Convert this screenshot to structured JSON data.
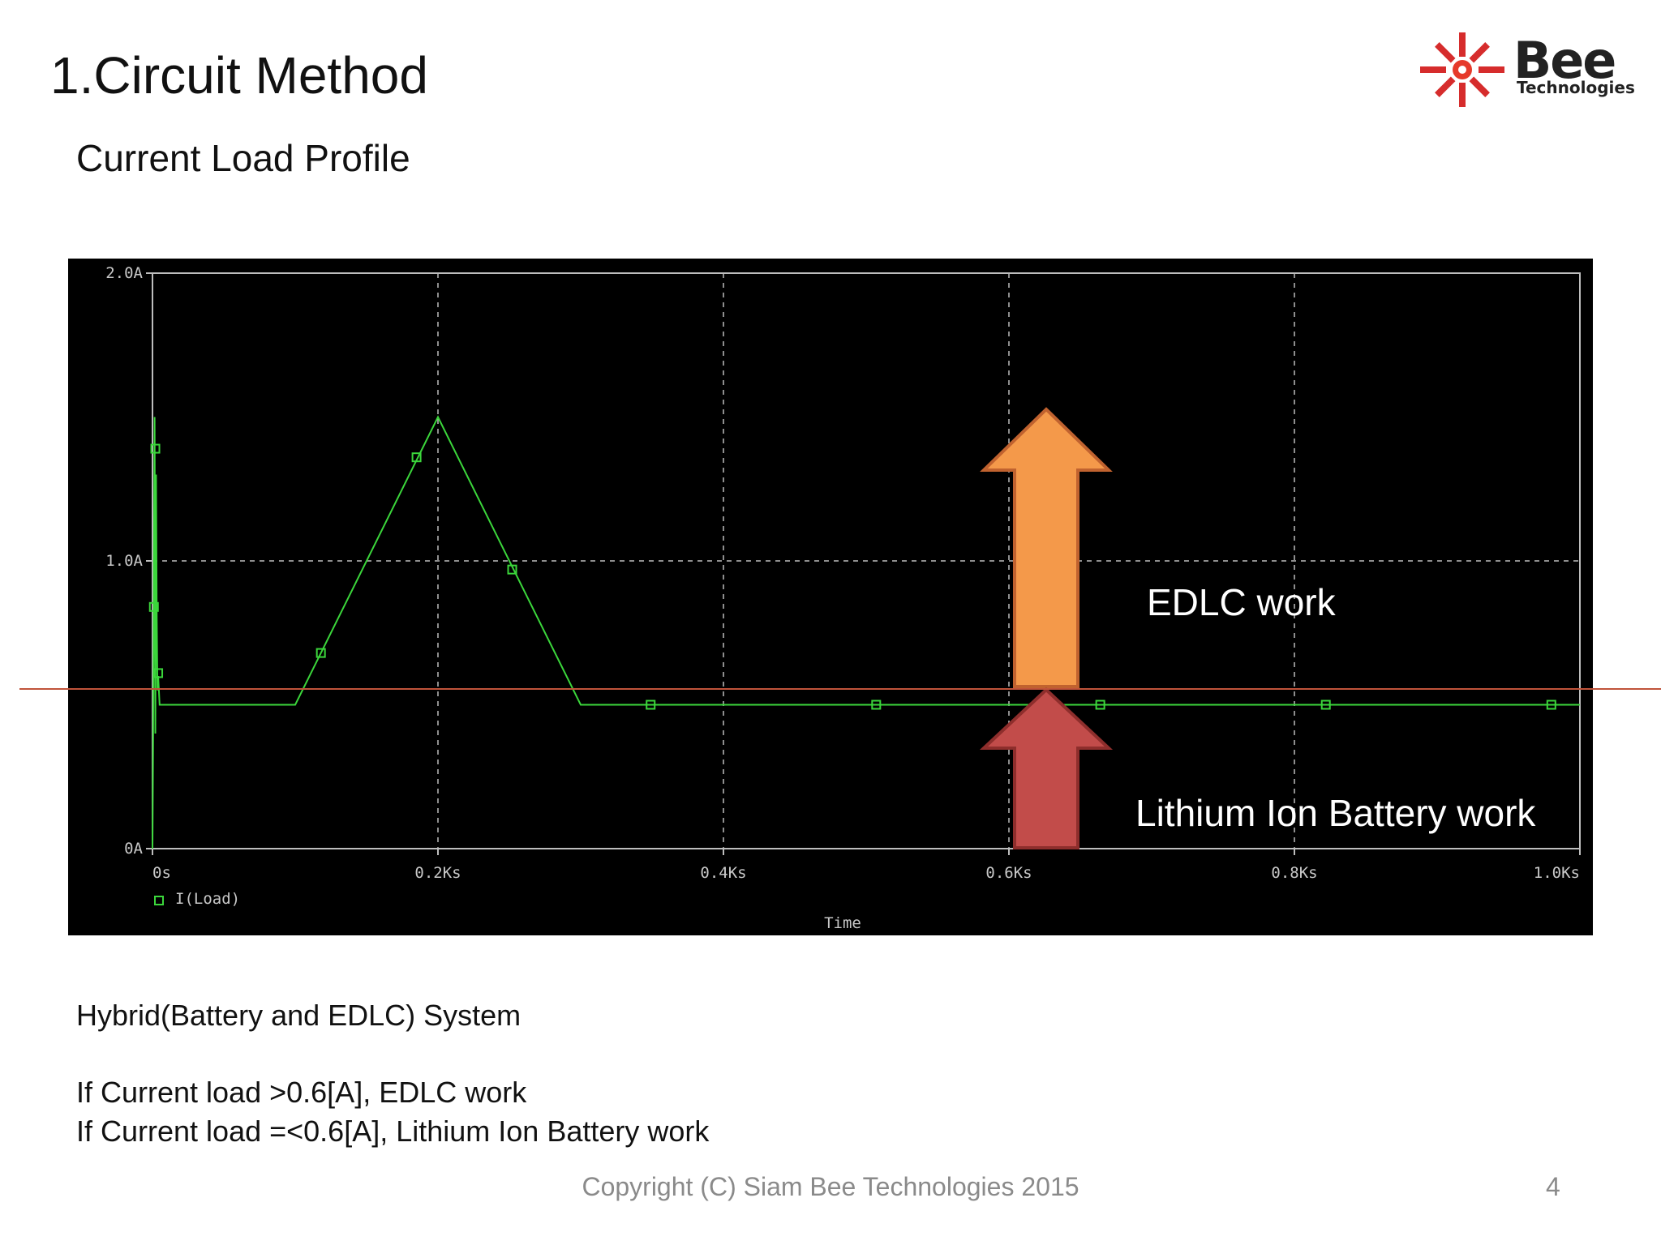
{
  "slide": {
    "title": "1.Circuit Method",
    "subtitle": "Current Load Profile",
    "logo_text": "Bee",
    "logo_sub": "Technologies",
    "body_heading": "Hybrid(Battery and EDLC) System",
    "rule_1": "If Current load >0.6[A], EDLC work",
    "rule_2": "If Current load =<0.6[A], Lithium Ion Battery work",
    "footer": "Copyright (C) Siam Bee Technologies 2015",
    "page_number": "4"
  },
  "colors": {
    "plot_bg": "#000000",
    "trace": "#3bd63b",
    "edlc_arrow": "#f4994a",
    "battery_arrow": "#c24c4a",
    "threshold_line": "#c0533a"
  },
  "chart_data": {
    "type": "line",
    "title": "",
    "xlabel": "Time",
    "ylabel": "",
    "x_unit": "Ks",
    "xlim": [
      0,
      1.0
    ],
    "ylim": [
      0,
      2.0
    ],
    "x_ticks": [
      "0s",
      "0.2Ks",
      "0.4Ks",
      "0.6Ks",
      "0.8Ks",
      "1.0Ks"
    ],
    "x_tick_values": [
      0,
      0.2,
      0.4,
      0.6,
      0.8,
      1.0
    ],
    "y_ticks": [
      "0A",
      "1.0A",
      "2.0A"
    ],
    "y_tick_values": [
      0,
      1.0,
      2.0
    ],
    "grid": true,
    "legend_position": "bottom-left",
    "threshold": 0.6,
    "series": [
      {
        "name": "I(Load)",
        "x": [
          0,
          0.0005,
          0.001,
          0.0015,
          0.002,
          0.0025,
          0.003,
          0.0035,
          0.004,
          0.005,
          0.1,
          0.2,
          0.3,
          1.0
        ],
        "y": [
          0,
          0.4,
          1.0,
          1.5,
          0.4,
          1.3,
          0.8,
          0.55,
          0.6,
          0.5,
          0.5,
          1.5,
          0.5,
          0.5
        ],
        "marker_x": [
          0.001,
          0.002,
          0.004,
          0.118,
          0.185,
          0.252,
          0.349,
          0.507,
          0.664,
          0.822,
          0.98
        ],
        "marker_y": [
          0.84,
          1.39,
          0.61,
          0.68,
          1.36,
          0.97,
          0.5,
          0.5,
          0.5,
          0.5,
          0.5
        ]
      }
    ],
    "annotations": [
      {
        "text": "EDLC work",
        "arrow": "up",
        "region": "above threshold"
      },
      {
        "text": "Lithium Ion Battery work",
        "arrow": "up",
        "region": "below threshold"
      }
    ]
  }
}
